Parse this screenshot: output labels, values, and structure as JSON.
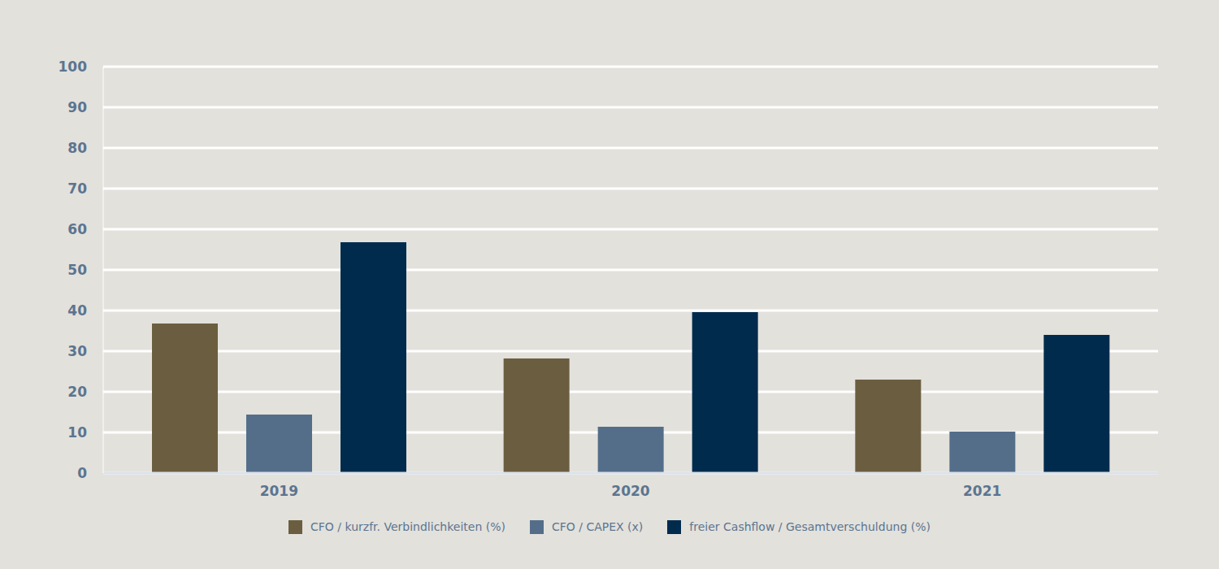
{
  "chart_data": {
    "type": "bar",
    "categories": [
      "2019",
      "2020",
      "2021"
    ],
    "series": [
      {
        "name": "CFO / kurzfr. Verbindlichkeiten (%)",
        "color": "#6b5e40",
        "values": [
          36.8,
          28.2,
          23
        ]
      },
      {
        "name": "CFO / CAPEX (x)",
        "color": "#546e8a",
        "values": [
          14.4,
          11.4,
          10.2
        ]
      },
      {
        "name": "freier Cashflow / Gesamtverschuldung (%)",
        "color": "#002b4d",
        "values": [
          56.8,
          39.6,
          34
        ]
      }
    ],
    "ylim": [
      0,
      100
    ],
    "yticks": [
      0,
      10,
      20,
      30,
      40,
      50,
      60,
      70,
      80,
      90,
      100
    ],
    "grid": true,
    "legend": "bottom"
  }
}
